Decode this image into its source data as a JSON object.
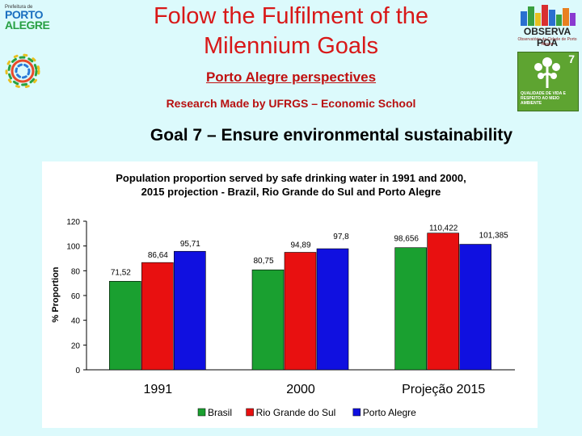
{
  "header": {
    "title": "Folow the Fulfilment of the Milennium Goals",
    "subtitle": "Porto Alegre perspectives",
    "research": "Research Made by UFRGS – Economic School",
    "goal": "Goal 7 – Ensure environmental sustainability"
  },
  "logos": {
    "left_small": "Prefeitura de",
    "left_line1": "PORTO",
    "left_line2": "ALEGRE",
    "right_name": "OBSERVA POA",
    "right_tagline": "Observatório da Cidade de Porto Alegre",
    "goal_number": "7",
    "goal_caption": "QUALIDADE DE VIDA E RESPEITO AO MEIO AMBIENTE"
  },
  "colors": {
    "brasil": "#1aa030",
    "rgs": "#e81010",
    "poa": "#1010e0",
    "title_red": "#d81818"
  },
  "chart_data": {
    "type": "bar",
    "title_line1": "Population proportion served by safe drinking water in 1991 and 2000,",
    "title_line2": "2015 projection - Brazil, Rio Grande do Sul and Porto Alegre",
    "ylabel": "% Proportion",
    "xlabel": "",
    "ylim": [
      0,
      120
    ],
    "yticks": [
      "0",
      "20",
      "40",
      "60",
      "80",
      "100",
      "120"
    ],
    "categories": [
      "1991",
      "2000",
      "Projeção 2015"
    ],
    "series": [
      {
        "name": "Brasil",
        "values": [
          71.52,
          80.75,
          98.656
        ],
        "labels": [
          "71,52",
          "80,75",
          "98,656"
        ]
      },
      {
        "name": "Rio Grande do Sul",
        "values": [
          86.64,
          94.89,
          110.422
        ],
        "labels": [
          "86,64",
          "94,89",
          "110,422"
        ]
      },
      {
        "name": "Porto Alegre",
        "values": [
          95.71,
          97.8,
          101.385
        ],
        "labels": [
          "95,71",
          "97,8",
          "101,385"
        ]
      }
    ],
    "legend_position": "bottom",
    "grid": false
  }
}
